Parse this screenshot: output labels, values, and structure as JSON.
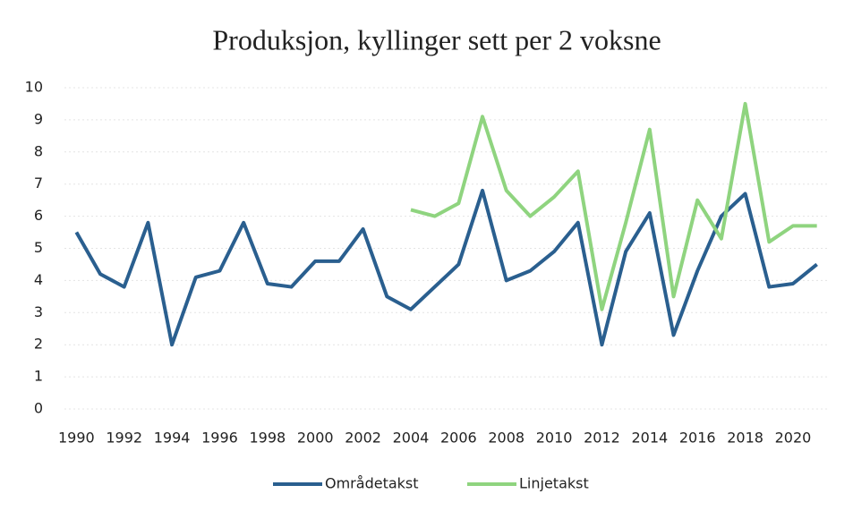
{
  "chart_data": {
    "type": "line",
    "title": "Produksjon, kyllinger sett per 2 voksne",
    "x": [
      1990,
      1991,
      1992,
      1993,
      1994,
      1995,
      1996,
      1997,
      1998,
      1999,
      2000,
      2001,
      2002,
      2003,
      2004,
      2005,
      2006,
      2007,
      2008,
      2009,
      2010,
      2011,
      2012,
      2013,
      2014,
      2015,
      2016,
      2017,
      2018,
      2019,
      2020,
      2021
    ],
    "series": [
      {
        "name": "Områdetakst",
        "color": "#2a5f8f",
        "values": [
          5.5,
          4.2,
          3.8,
          5.8,
          2.0,
          4.1,
          4.3,
          5.8,
          3.9,
          3.8,
          4.6,
          4.6,
          5.6,
          3.5,
          3.1,
          3.8,
          4.5,
          6.8,
          4.0,
          4.3,
          4.9,
          5.8,
          2.0,
          4.9,
          6.1,
          2.3,
          4.3,
          6.0,
          6.7,
          3.8,
          3.9,
          4.5
        ]
      },
      {
        "name": "Linjetakst",
        "color": "#8fd47f",
        "values": [
          null,
          null,
          null,
          null,
          null,
          null,
          null,
          null,
          null,
          null,
          null,
          null,
          null,
          null,
          6.2,
          6.0,
          6.4,
          9.1,
          6.8,
          6.0,
          6.6,
          7.4,
          3.1,
          5.8,
          8.7,
          3.5,
          6.5,
          5.3,
          9.5,
          5.2,
          5.7,
          5.7
        ]
      }
    ],
    "xlim": [
      1989.5,
      2021.5
    ],
    "xticks": [
      1990,
      1992,
      1994,
      1996,
      1998,
      2000,
      2002,
      2004,
      2006,
      2008,
      2010,
      2012,
      2014,
      2016,
      2018,
      2020
    ],
    "ylim": [
      0,
      10
    ],
    "yticks": [
      0,
      1,
      2,
      3,
      4,
      5,
      6,
      7,
      8,
      9,
      10
    ],
    "grid": true,
    "legend": "bottom"
  }
}
